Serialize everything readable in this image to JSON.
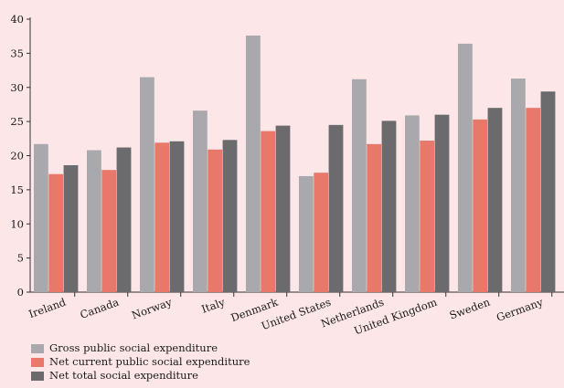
{
  "chart_data": {
    "type": "bar",
    "title": "",
    "xlabel": "",
    "ylabel": "",
    "ylim": [
      0,
      40
    ],
    "yticks": [
      0,
      5,
      10,
      15,
      20,
      25,
      30,
      35,
      40
    ],
    "grid": false,
    "legend_position": "bottom-left",
    "categories": [
      "Ireland",
      "Canada",
      "Norway",
      "Italy",
      "Denmark",
      "United States",
      "Netherlands",
      "United Kingdom",
      "Sweden",
      "Germany"
    ],
    "series": [
      {
        "name": "Gross public social expenditure",
        "color": "#a9a9ad",
        "values": [
          21.7,
          20.8,
          31.5,
          26.6,
          37.6,
          17.0,
          31.2,
          25.9,
          36.4,
          31.3
        ]
      },
      {
        "name": "Net current public social expenditure",
        "color": "#e8796a",
        "values": [
          17.3,
          17.9,
          21.9,
          20.9,
          23.6,
          17.5,
          21.7,
          22.2,
          25.3,
          27.0
        ]
      },
      {
        "name": "Net total social expenditure",
        "color": "#6b6b6d",
        "values": [
          18.6,
          21.2,
          22.1,
          22.3,
          24.4,
          24.5,
          25.1,
          26.0,
          27.0,
          29.4
        ]
      }
    ]
  }
}
